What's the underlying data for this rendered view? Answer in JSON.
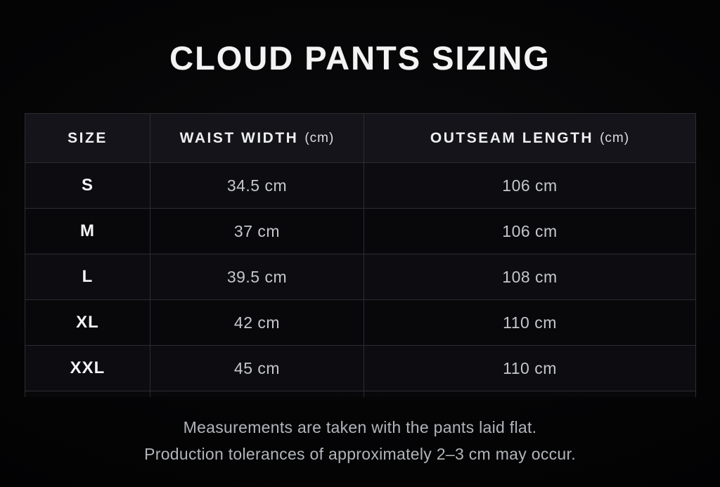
{
  "title": "CLOUD PANTS SIZING",
  "table": {
    "headers": [
      {
        "label": "SIZE",
        "unit": ""
      },
      {
        "label": "WAIST WIDTH",
        "unit": "(cm)"
      },
      {
        "label": "OUTSEAM LENGTH",
        "unit": "(cm)"
      }
    ],
    "rows": [
      {
        "size": "S",
        "waist": "34.5 cm",
        "outseam": "106 cm"
      },
      {
        "size": "M",
        "waist": "37 cm",
        "outseam": "106 cm"
      },
      {
        "size": "L",
        "waist": "39.5 cm",
        "outseam": "108 cm"
      },
      {
        "size": "XL",
        "waist": "42 cm",
        "outseam": "110 cm"
      },
      {
        "size": "XXL",
        "waist": "45 cm",
        "outseam": "110 cm"
      }
    ]
  },
  "footer": {
    "line1": "Measurements are taken with the pants laid flat.",
    "line2": "Production tolerances of approximately 2–3 cm may occur."
  },
  "colors": {
    "background": "#050506",
    "header_bg": "#14141a",
    "row_bg_dark": "#08080b",
    "row_bg_light": "#0d0d11",
    "border": "#2c2c31",
    "title_text": "#f3f3f4",
    "value_text": "#c4c7ca",
    "footer_text": "#b1b5b9"
  },
  "chart_data": {
    "type": "table",
    "title": "CLOUD PANTS SIZING",
    "columns": [
      "SIZE",
      "WAIST WIDTH (cm)",
      "OUTSEAM LENGTH (cm)"
    ],
    "rows": [
      [
        "S",
        34.5,
        106
      ],
      [
        "M",
        37,
        106
      ],
      [
        "L",
        39.5,
        108
      ],
      [
        "XL",
        42,
        110
      ],
      [
        "XXL",
        45,
        110
      ]
    ],
    "units": "cm",
    "annotations": [
      "Measurements are taken with the pants laid flat.",
      "Production tolerances of approximately 2–3 cm may occur."
    ]
  }
}
